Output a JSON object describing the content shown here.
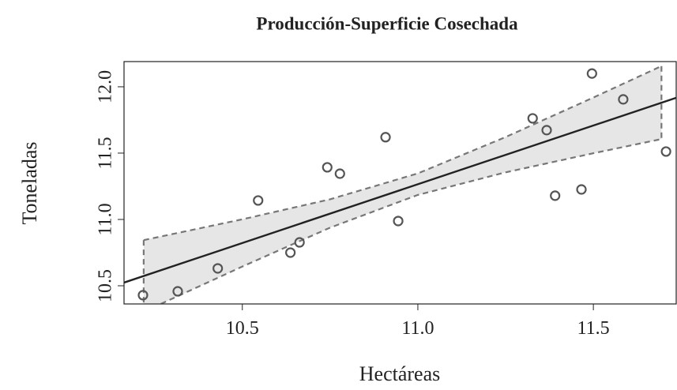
{
  "chart_data": {
    "type": "scatter",
    "title": "Producción-Superficie Cosechada",
    "x_label": "Hectáreas",
    "y_label": "Toneladas",
    "xlim": [
      10.163,
      11.736
    ],
    "ylim": [
      10.363,
      12.19
    ],
    "xticks": [
      {
        "value": 10.5,
        "label": "10.5"
      },
      {
        "value": 11.0,
        "label": "11.0"
      },
      {
        "value": 11.5,
        "label": "11.5"
      }
    ],
    "yticks": [
      {
        "value": 10.5,
        "label": "10.5"
      },
      {
        "value": 11.0,
        "label": "11.0"
      },
      {
        "value": 11.5,
        "label": "11.5"
      },
      {
        "value": 12.0,
        "label": "12.0"
      }
    ],
    "color": "#555555",
    "x": [
      10.217,
      10.316,
      10.43,
      10.545,
      10.637,
      10.663,
      10.742,
      10.778,
      10.908,
      10.944,
      11.327,
      11.367,
      11.391,
      11.466,
      11.496,
      11.585,
      11.707
    ],
    "values": [
      10.429,
      10.458,
      10.631,
      11.143,
      10.75,
      10.827,
      11.393,
      11.345,
      11.62,
      10.988,
      11.762,
      11.673,
      11.179,
      11.226,
      12.1,
      11.905,
      11.512
    ],
    "fit": {
      "x": [
        10.163,
        11.736
      ],
      "values": [
        10.524,
        11.917
      ],
      "color": "#222222"
    },
    "band": {
      "x": [
        10.219,
        10.5,
        10.75,
        11.0,
        11.25,
        11.5,
        11.694
      ],
      "upper": [
        10.844,
        11.001,
        11.152,
        11.347,
        11.621,
        11.919,
        12.156
      ],
      "lower": [
        10.304,
        10.645,
        10.938,
        11.185,
        11.355,
        11.499,
        11.606
      ],
      "color": "#e6e6e6",
      "edge_color": "#777777"
    }
  }
}
